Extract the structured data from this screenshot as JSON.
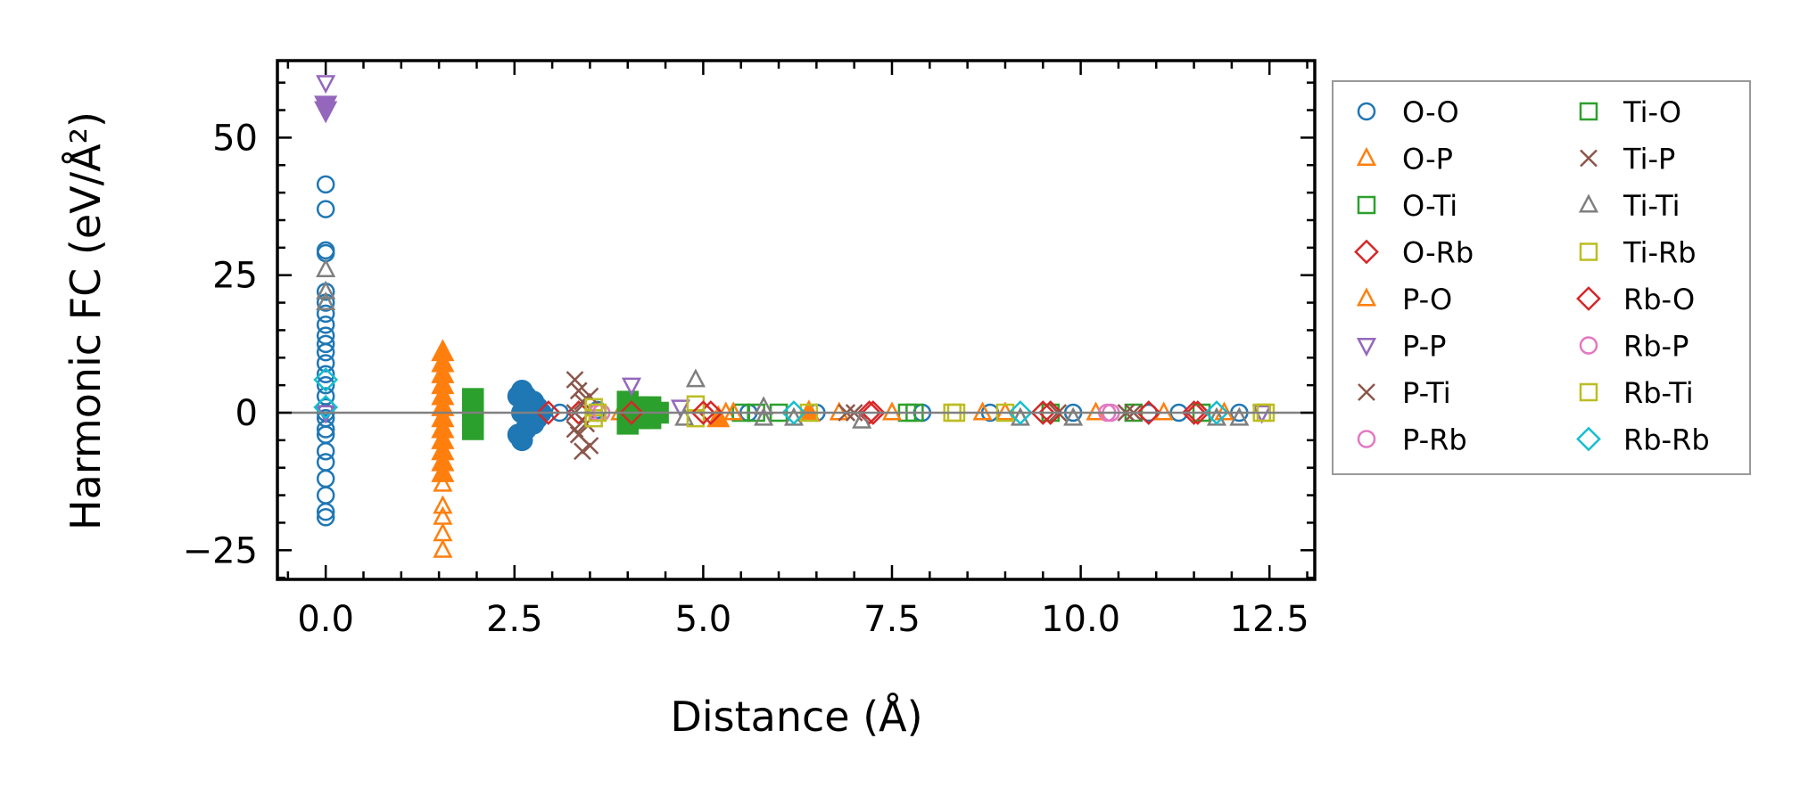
{
  "chart_data": {
    "type": "scatter",
    "title": "",
    "xlabel": "Distance (Å)",
    "ylabel": "Harmonic FC (eV/Å²)",
    "xlim": [
      -0.64,
      13.1
    ],
    "ylim": [
      -30.3,
      64
    ],
    "xticks": [
      0.0,
      2.5,
      5.0,
      7.5,
      10.0,
      12.5
    ],
    "xtick_labels": [
      "0.0",
      "2.5",
      "5.0",
      "7.5",
      "10.0",
      "12.5"
    ],
    "yticks": [
      -25,
      0,
      25,
      50
    ],
    "ytick_labels": [
      "−25",
      "0",
      "25",
      "50"
    ],
    "reference_line_y": 0,
    "grid": false,
    "legend_placement": "outside-right",
    "series": [
      {
        "name": "O-O",
        "marker": "circle",
        "color": "#1f77b4",
        "filled_cluster": [
          [
            2.55,
            -4
          ],
          [
            2.55,
            3
          ],
          [
            2.6,
            -5
          ],
          [
            2.6,
            4
          ],
          [
            2.65,
            -3
          ],
          [
            2.65,
            3
          ],
          [
            2.7,
            -2
          ],
          [
            2.7,
            2
          ],
          [
            2.75,
            -2
          ],
          [
            2.75,
            2
          ],
          [
            2.8,
            -1
          ],
          [
            2.8,
            1
          ],
          [
            2.85,
            0
          ],
          [
            2.6,
            0
          ],
          [
            2.7,
            0
          ]
        ],
        "points": [
          [
            0,
            41.5
          ],
          [
            0,
            37
          ],
          [
            0,
            29.5
          ],
          [
            0,
            29
          ],
          [
            0,
            22
          ],
          [
            0,
            20
          ],
          [
            0,
            18
          ],
          [
            0,
            16
          ],
          [
            0,
            14
          ],
          [
            0,
            12.5
          ],
          [
            0,
            11
          ],
          [
            0,
            9
          ],
          [
            0,
            7
          ],
          [
            0,
            5
          ],
          [
            0,
            3
          ],
          [
            0,
            1
          ],
          [
            0,
            0
          ],
          [
            0,
            -1
          ],
          [
            0,
            -3
          ],
          [
            0,
            -4
          ],
          [
            0,
            -7
          ],
          [
            0,
            -9
          ],
          [
            0,
            -12
          ],
          [
            0,
            -15
          ],
          [
            0,
            -18
          ],
          [
            0,
            -19
          ],
          [
            3.1,
            0
          ],
          [
            3.6,
            0.5
          ],
          [
            5.6,
            0
          ],
          [
            6.5,
            0
          ],
          [
            7.9,
            0
          ],
          [
            8.8,
            0
          ],
          [
            9.9,
            0
          ],
          [
            10.9,
            0
          ],
          [
            11.3,
            0
          ],
          [
            12.1,
            0
          ]
        ]
      },
      {
        "name": "O-P",
        "marker": "triangle-up",
        "color": "#ff7f0e",
        "filled_cluster": [
          [
            1.55,
            11
          ],
          [
            1.55,
            9
          ],
          [
            1.55,
            7
          ],
          [
            1.55,
            5
          ],
          [
            1.55,
            3
          ],
          [
            1.55,
            1
          ],
          [
            1.55,
            -1
          ],
          [
            1.55,
            -3
          ],
          [
            1.55,
            -5
          ],
          [
            1.55,
            -7
          ],
          [
            1.55,
            -9
          ],
          [
            1.55,
            -11
          ],
          [
            5.2,
            -1
          ],
          [
            6.4,
            0
          ]
        ],
        "points": [
          [
            1.55,
            -13
          ],
          [
            1.55,
            -17
          ],
          [
            1.55,
            -19
          ],
          [
            1.55,
            -22
          ],
          [
            1.55,
            -25
          ],
          [
            3.9,
            0
          ],
          [
            5.3,
            0
          ],
          [
            6.8,
            0
          ],
          [
            8.7,
            0
          ],
          [
            10.2,
            0
          ],
          [
            11.1,
            0
          ]
        ]
      },
      {
        "name": "O-Ti",
        "marker": "square",
        "color": "#2ca02c",
        "filled_cluster": [
          [
            1.95,
            -3
          ],
          [
            1.95,
            -1
          ],
          [
            1.95,
            1
          ],
          [
            1.95,
            2.5
          ],
          [
            4.0,
            -2
          ],
          [
            4.0,
            2
          ],
          [
            4.15,
            -1
          ],
          [
            4.15,
            1
          ],
          [
            4.3,
            -1
          ],
          [
            4.3,
            1
          ],
          [
            4.4,
            0
          ]
        ],
        "points": [
          [
            5.5,
            0
          ],
          [
            6.0,
            0
          ],
          [
            7.7,
            0
          ],
          [
            9.6,
            0
          ],
          [
            10.7,
            0
          ]
        ]
      },
      {
        "name": "O-Rb",
        "marker": "diamond",
        "color": "#d62728",
        "filled_cluster": [],
        "points": [
          [
            2.95,
            0
          ],
          [
            3.35,
            0
          ],
          [
            4.05,
            0
          ],
          [
            5.1,
            0
          ],
          [
            7.2,
            0
          ],
          [
            9.6,
            0
          ],
          [
            10.9,
            0
          ],
          [
            11.5,
            0
          ]
        ]
      },
      {
        "name": "P-O",
        "marker": "triangle-up",
        "color": "#ff7f0e",
        "filled_cluster": [],
        "points": [
          [
            5.4,
            0
          ],
          [
            7.5,
            0
          ],
          [
            9.0,
            0
          ],
          [
            11.9,
            0
          ]
        ]
      },
      {
        "name": "P-P",
        "marker": "triangle-down",
        "color": "#9467bd",
        "filled_cluster": [
          [
            0,
            56
          ],
          [
            0,
            55
          ]
        ],
        "points": [
          [
            0,
            60
          ],
          [
            0,
            0
          ],
          [
            4.05,
            5
          ],
          [
            4.7,
            1
          ],
          [
            12.4,
            0
          ]
        ]
      },
      {
        "name": "P-Ti",
        "marker": "x",
        "color": "#8c564b",
        "filled_cluster": [],
        "points": [
          [
            3.3,
            6
          ],
          [
            3.35,
            4
          ],
          [
            3.4,
            2
          ],
          [
            3.3,
            0
          ],
          [
            3.45,
            -2
          ],
          [
            3.35,
            -4
          ],
          [
            3.5,
            -6
          ],
          [
            3.4,
            -7
          ],
          [
            3.5,
            3
          ],
          [
            3.3,
            -3
          ],
          [
            7.0,
            0
          ],
          [
            10.6,
            0
          ]
        ]
      },
      {
        "name": "P-Rb",
        "marker": "circle",
        "color": "#e377c2",
        "filled_cluster": [],
        "points": [
          [
            3.6,
            0
          ],
          [
            10.4,
            0
          ]
        ]
      },
      {
        "name": "Ti-O",
        "marker": "square",
        "color": "#2ca02c",
        "filled_cluster": [],
        "points": [
          [
            5.7,
            0
          ],
          [
            7.8,
            0
          ],
          [
            11.6,
            0
          ]
        ]
      },
      {
        "name": "Ti-P",
        "marker": "x",
        "color": "#8c564b",
        "filled_cluster": [],
        "points": [
          [
            6.9,
            0
          ],
          [
            9.7,
            0
          ],
          [
            10.7,
            0
          ]
        ]
      },
      {
        "name": "Ti-Ti",
        "marker": "triangle-up",
        "color": "#7f7f7f",
        "filled_cluster": [],
        "points": [
          [
            0,
            26
          ],
          [
            0,
            22
          ],
          [
            0,
            20
          ],
          [
            4.9,
            6
          ],
          [
            4.75,
            -1
          ],
          [
            5.8,
            1
          ],
          [
            5.8,
            -1
          ],
          [
            6.2,
            -1
          ],
          [
            7.1,
            -1.5
          ],
          [
            9.2,
            -1
          ],
          [
            9.9,
            -1
          ],
          [
            11.8,
            -1
          ],
          [
            12.1,
            -1
          ]
        ]
      },
      {
        "name": "Ti-Rb",
        "marker": "square",
        "color": "#bcbd22",
        "filled_cluster": [],
        "points": [
          [
            3.55,
            -1
          ],
          [
            3.55,
            1
          ],
          [
            4.9,
            -1
          ],
          [
            4.9,
            1.5
          ],
          [
            6.4,
            0
          ],
          [
            8.3,
            0
          ],
          [
            9.0,
            0
          ],
          [
            12.4,
            0
          ]
        ]
      },
      {
        "name": "Rb-O",
        "marker": "diamond",
        "color": "#d62728",
        "filled_cluster": [],
        "points": [
          [
            5.0,
            0
          ],
          [
            7.25,
            0
          ],
          [
            9.5,
            0
          ],
          [
            11.55,
            0
          ]
        ]
      },
      {
        "name": "Rb-P",
        "marker": "circle",
        "color": "#e377c2",
        "filled_cluster": [],
        "points": [
          [
            3.65,
            0
          ],
          [
            10.35,
            0
          ]
        ]
      },
      {
        "name": "Rb-Ti",
        "marker": "square",
        "color": "#bcbd22",
        "filled_cluster": [],
        "points": [
          [
            3.6,
            0
          ],
          [
            8.35,
            0
          ],
          [
            12.45,
            0
          ]
        ]
      },
      {
        "name": "Rb-Rb",
        "marker": "diamond",
        "color": "#17becf",
        "filled_cluster": [],
        "points": [
          [
            0,
            6
          ],
          [
            0,
            1
          ],
          [
            6.2,
            0
          ],
          [
            9.2,
            0
          ],
          [
            11.8,
            0
          ]
        ]
      }
    ]
  }
}
